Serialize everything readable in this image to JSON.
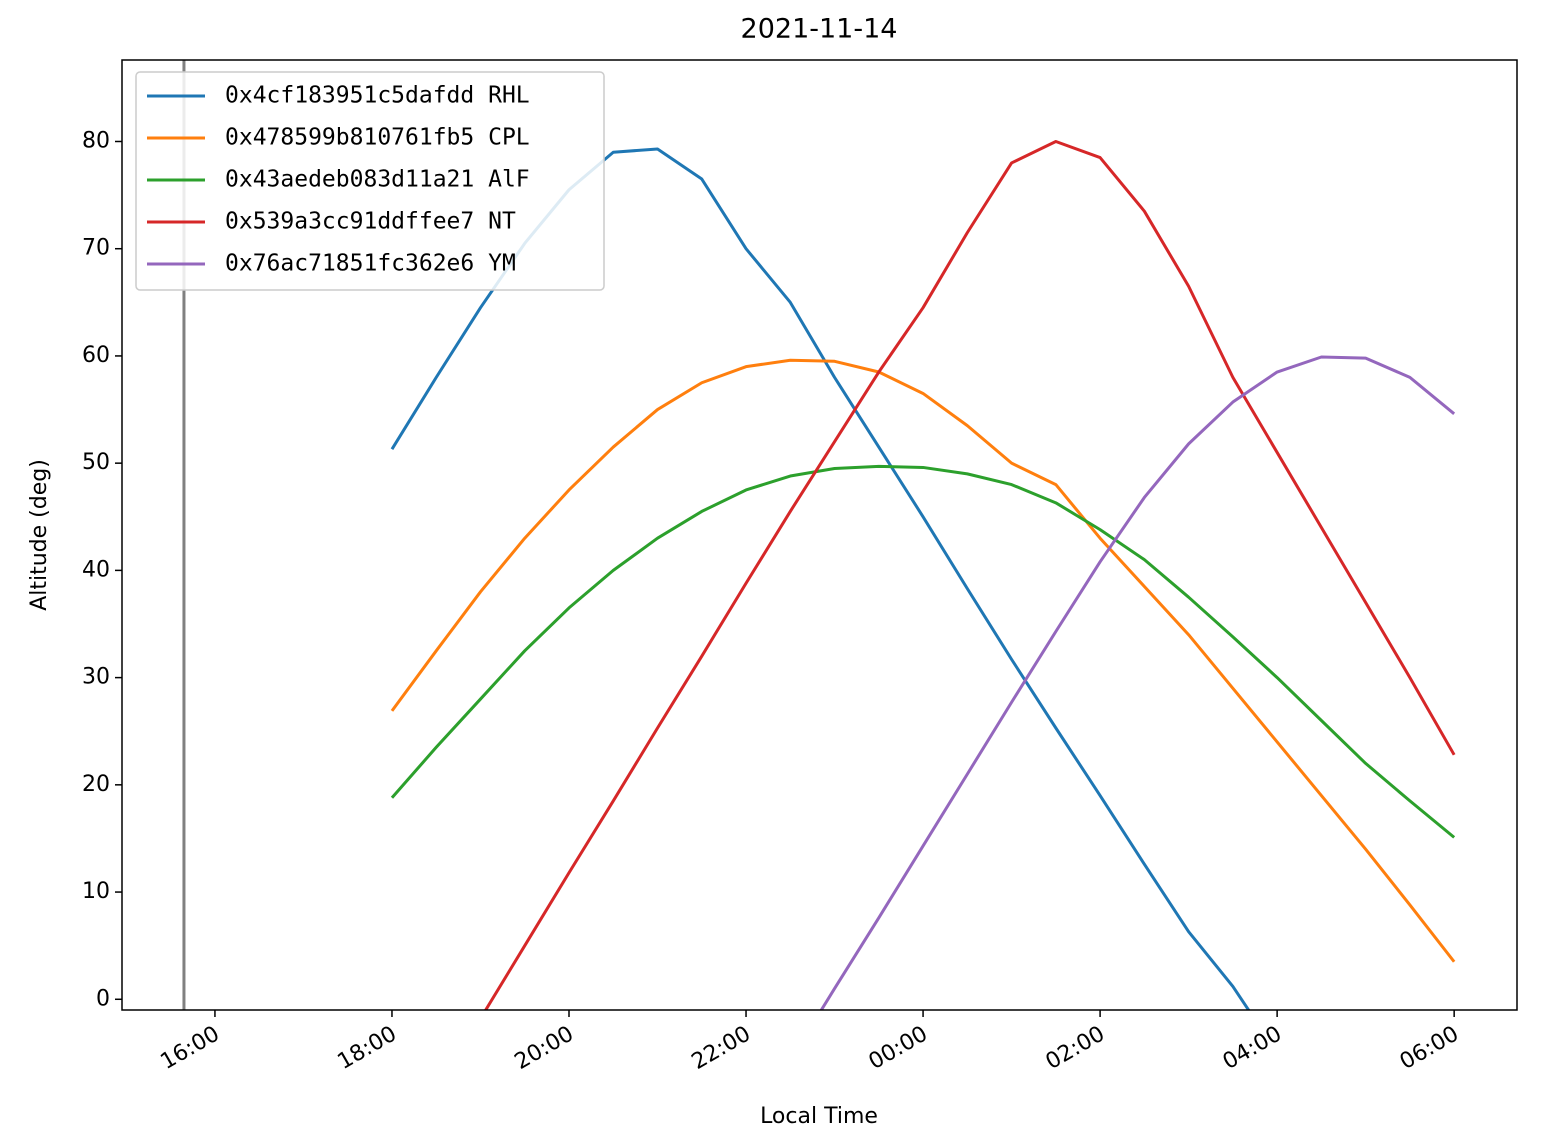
{
  "chart_data": {
    "type": "line",
    "title": "2021-11-14",
    "xlabel": "Local Time",
    "ylabel": "Altitude (deg)",
    "x": [
      18,
      18.5,
      19,
      19.5,
      20,
      20.5,
      21,
      21.5,
      22,
      22.5,
      23,
      23.5,
      24,
      24.5,
      25,
      25.5,
      26,
      26.5,
      27,
      27.5,
      28,
      28.5,
      29,
      29.5,
      30
    ],
    "series": [
      {
        "name": "0x4cf183951c5dafdd RHL",
        "color": "#1f77b4",
        "values": [
          51.3,
          58,
          64.5,
          70.5,
          75.5,
          79,
          79.3,
          76.5,
          70,
          65,
          58,
          51.5,
          45,
          38.3,
          31.7,
          25.3,
          19,
          12.6,
          6.3,
          1.2,
          -5,
          null,
          null,
          null,
          null
        ]
      },
      {
        "name": "0x478599b810761fb5 CPL",
        "color": "#ff7f0e",
        "values": [
          26.9,
          32.5,
          38,
          43,
          47.5,
          51.5,
          55,
          57.5,
          59,
          59.6,
          59.5,
          58.5,
          56.5,
          53.5,
          50,
          48,
          43,
          38.5,
          34,
          29,
          24,
          19,
          14,
          8.8,
          3.5
        ]
      },
      {
        "name": "0x43aedeb083d11a21 AlF",
        "color": "#2ca02c",
        "values": [
          18.8,
          23.5,
          28,
          32.5,
          36.5,
          40,
          43,
          45.5,
          47.5,
          48.8,
          49.5,
          49.7,
          49.6,
          49,
          48,
          46.3,
          43.8,
          41,
          37.5,
          33.8,
          30,
          26,
          22,
          18.5,
          15.1
        ]
      },
      {
        "name": "0x539a3cc91ddffee7 NT",
        "color": "#d62728",
        "values": [
          null,
          -8.5,
          -1.8,
          5,
          11.8,
          18.5,
          25.3,
          32,
          38.8,
          45.5,
          52,
          58.5,
          64.5,
          71.5,
          78,
          80,
          78.5,
          73.5,
          66.5,
          58,
          51,
          44,
          37,
          30,
          22.8
        ]
      },
      {
        "name": "0x76ac71851fc362e6 YM",
        "color": "#9467bd",
        "values": [
          null,
          null,
          null,
          null,
          null,
          null,
          null,
          null,
          null,
          -5.7,
          1,
          7.6,
          14.3,
          21,
          27.7,
          34.3,
          40.8,
          46.8,
          51.8,
          55.7,
          58.5,
          59.9,
          59.8,
          58,
          54.6
        ]
      }
    ],
    "vline_x": 15.65,
    "vline_color": "#808080",
    "xlim": [
      14.95,
      30.71
    ],
    "ylim": [
      -1,
      87.6
    ],
    "xticks": [
      {
        "value": 16,
        "label": "16:00"
      },
      {
        "value": 18,
        "label": "18:00"
      },
      {
        "value": 20,
        "label": "20:00"
      },
      {
        "value": 22,
        "label": "22:00"
      },
      {
        "value": 24,
        "label": "00:00"
      },
      {
        "value": 26,
        "label": "02:00"
      },
      {
        "value": 28,
        "label": "04:00"
      },
      {
        "value": 30,
        "label": "06:00"
      }
    ],
    "yticks": [
      0,
      10,
      20,
      30,
      40,
      50,
      60,
      70,
      80
    ],
    "legend": "upper left"
  }
}
